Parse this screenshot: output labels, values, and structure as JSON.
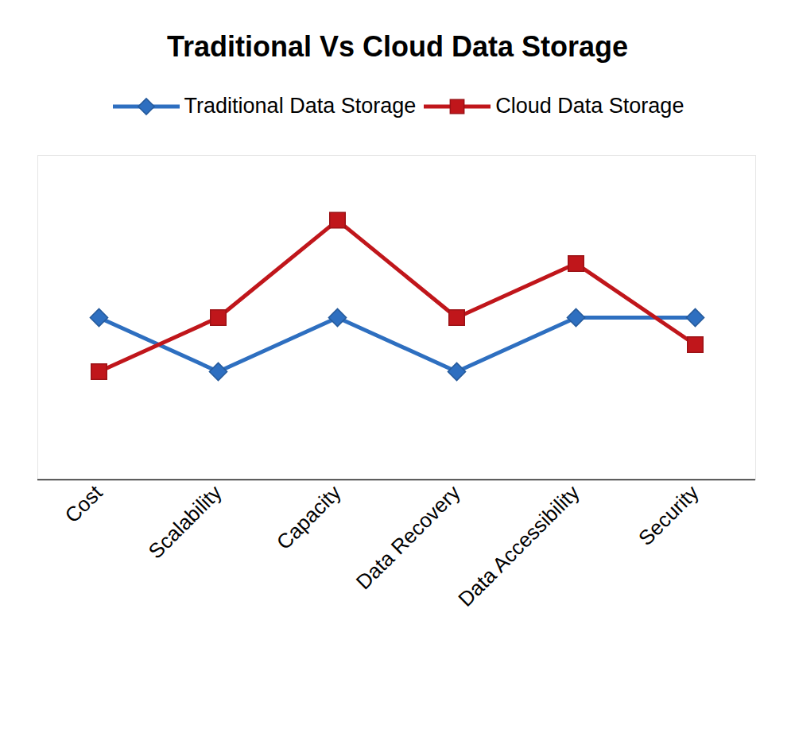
{
  "chart_data": {
    "type": "line",
    "title": "Traditional Vs Cloud Data Storage",
    "categories": [
      "Cost",
      "Scalability",
      "Capacity",
      "Data Recovery",
      "Data Accessibility",
      "Security"
    ],
    "series": [
      {
        "name": "Traditional Data Storage",
        "color": "#2e6fc0",
        "marker": "diamond",
        "line_style": "solid",
        "values": [
          3,
          2,
          3,
          2,
          3,
          3
        ]
      },
      {
        "name": "Cloud Data Storage",
        "color": "#c0161b",
        "marker": "square",
        "line_style": "solid",
        "values": [
          2,
          3,
          4.8,
          3,
          4,
          2.5
        ]
      }
    ],
    "ylim": [
      0,
      6
    ],
    "grid": false,
    "legend": "top",
    "tick_labels": "x"
  }
}
